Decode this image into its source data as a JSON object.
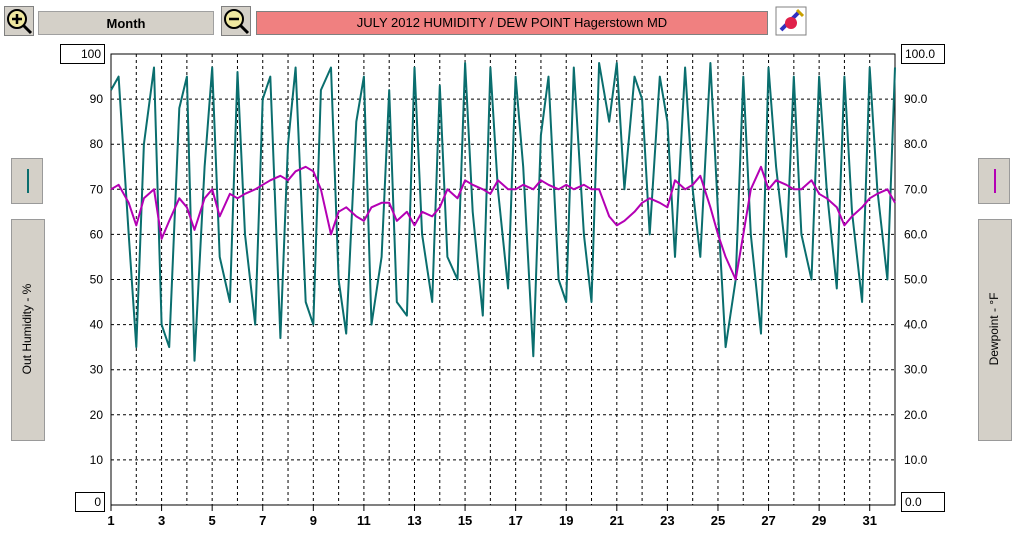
{
  "toolbar": {
    "zoom_in_icon": "zoom-in-icon",
    "zoom_out_icon": "zoom-out-icon",
    "period_label": "Month",
    "title": "JULY  2012  HUMIDITY / DEW POINT  Hagerstown MD",
    "edit_icon": "pencil-eraser-icon"
  },
  "left_axis": {
    "label": "Out Humidity - %",
    "top_value": "100",
    "bottom_value": "0",
    "ticks": [
      "90",
      "80",
      "70",
      "60",
      "50",
      "40",
      "30",
      "20",
      "10"
    ]
  },
  "right_axis": {
    "label": "Dewpoint - °F",
    "top_value": "100.0",
    "bottom_value": "0.0",
    "ticks": [
      "90.0",
      "80.0",
      "70.0",
      "60.0",
      "50.0",
      "40.0",
      "30.0",
      "20.0",
      "10.0"
    ]
  },
  "colors": {
    "humidity": "#0a6e6e",
    "dewpoint": "#b400b4",
    "title_bg": "#f08080"
  },
  "chart_data": {
    "type": "line",
    "xlim": [
      1,
      32
    ],
    "ylim": [
      0,
      100
    ],
    "grid": true,
    "x_ticks": [
      "1",
      "3",
      "5",
      "7",
      "9",
      "11",
      "13",
      "15",
      "17",
      "19",
      "21",
      "23",
      "25",
      "27",
      "29",
      "31"
    ],
    "series": [
      {
        "name": "Out Humidity - %",
        "color": "#0a6e6e",
        "x": [
          1.0,
          1.3,
          1.7,
          2.0,
          2.3,
          2.7,
          3.0,
          3.3,
          3.7,
          4.0,
          4.3,
          4.7,
          5.0,
          5.3,
          5.7,
          6.0,
          6.3,
          6.7,
          7.0,
          7.3,
          7.7,
          8.0,
          8.3,
          8.7,
          9.0,
          9.3,
          9.7,
          10.0,
          10.3,
          10.7,
          11.0,
          11.3,
          11.7,
          12.0,
          12.3,
          12.7,
          13.0,
          13.3,
          13.7,
          14.0,
          14.3,
          14.7,
          15.0,
          15.3,
          15.7,
          16.0,
          16.3,
          16.7,
          17.0,
          17.3,
          17.7,
          18.0,
          18.3,
          18.7,
          19.0,
          19.3,
          19.7,
          20.0,
          20.3,
          20.7,
          21.0,
          21.3,
          21.7,
          22.0,
          22.3,
          22.7,
          23.0,
          23.3,
          23.7,
          24.0,
          24.3,
          24.7,
          25.0,
          25.3,
          25.7,
          26.0,
          26.3,
          26.7,
          27.0,
          27.3,
          27.7,
          28.0,
          28.3,
          28.7,
          29.0,
          29.3,
          29.7,
          30.0,
          30.3,
          30.7,
          31.0,
          31.3,
          31.7,
          32.0
        ],
        "y": [
          92,
          95,
          60,
          35,
          80,
          97,
          40,
          35,
          88,
          95,
          32,
          75,
          97,
          55,
          45,
          96,
          60,
          40,
          90,
          95,
          37,
          80,
          97,
          45,
          40,
          92,
          97,
          50,
          38,
          85,
          95,
          40,
          55,
          92,
          45,
          42,
          97,
          60,
          45,
          93,
          55,
          50,
          98,
          65,
          42,
          97,
          70,
          48,
          95,
          75,
          33,
          82,
          95,
          50,
          45,
          97,
          60,
          45,
          98,
          85,
          98,
          70,
          95,
          90,
          60,
          95,
          85,
          55,
          97,
          70,
          55,
          98,
          65,
          35,
          50,
          95,
          60,
          38,
          97,
          75,
          55,
          95,
          60,
          50,
          95,
          70,
          48,
          95,
          65,
          45,
          97,
          70,
          50,
          97
        ]
      },
      {
        "name": "Dewpoint - °F",
        "color": "#b400b4",
        "x": [
          1.0,
          1.3,
          1.7,
          2.0,
          2.3,
          2.7,
          3.0,
          3.3,
          3.7,
          4.0,
          4.3,
          4.7,
          5.0,
          5.3,
          5.7,
          6.0,
          6.3,
          6.7,
          7.0,
          7.3,
          7.7,
          8.0,
          8.3,
          8.7,
          9.0,
          9.3,
          9.7,
          10.0,
          10.3,
          10.7,
          11.0,
          11.3,
          11.7,
          12.0,
          12.3,
          12.7,
          13.0,
          13.3,
          13.7,
          14.0,
          14.3,
          14.7,
          15.0,
          15.3,
          15.7,
          16.0,
          16.3,
          16.7,
          17.0,
          17.3,
          17.7,
          18.0,
          18.3,
          18.7,
          19.0,
          19.3,
          19.7,
          20.0,
          20.3,
          20.7,
          21.0,
          21.3,
          21.7,
          22.0,
          22.3,
          22.7,
          23.0,
          23.3,
          23.7,
          24.0,
          24.3,
          24.7,
          25.0,
          25.3,
          25.7,
          26.0,
          26.3,
          26.7,
          27.0,
          27.3,
          27.7,
          28.0,
          28.3,
          28.7,
          29.0,
          29.3,
          29.7,
          30.0,
          30.3,
          30.7,
          31.0,
          31.3,
          31.7,
          32.0
        ],
        "y": [
          70,
          71,
          67,
          62,
          68,
          70,
          59,
          63,
          68,
          66,
          61,
          68,
          70,
          64,
          69,
          68,
          69,
          70,
          71,
          72,
          73,
          72,
          74,
          75,
          74,
          70,
          60,
          65,
          66,
          64,
          63,
          66,
          67,
          67,
          63,
          65,
          62,
          65,
          64,
          66,
          70,
          68,
          72,
          71,
          70,
          69,
          72,
          70,
          70,
          71,
          70,
          72,
          71,
          70,
          71,
          70,
          71,
          70,
          70,
          64,
          62,
          63,
          65,
          67,
          68,
          67,
          66,
          72,
          70,
          71,
          73,
          66,
          60,
          55,
          50,
          60,
          70,
          75,
          70,
          72,
          71,
          70,
          70,
          72,
          69,
          68,
          66,
          62,
          64,
          66,
          68,
          69,
          70,
          67
        ]
      }
    ]
  }
}
